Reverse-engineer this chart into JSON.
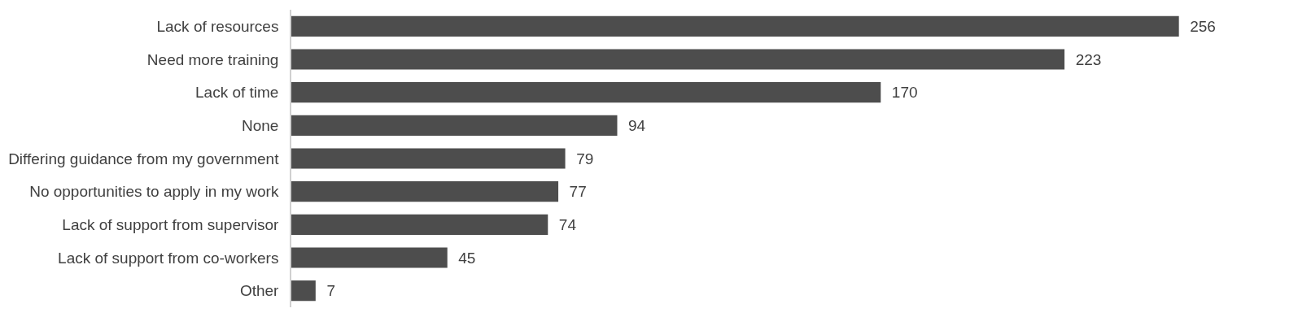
{
  "chart_data": {
    "type": "bar",
    "orientation": "horizontal",
    "categories": [
      "Lack of resources",
      "Need more training",
      "Lack of time",
      "None",
      "Differing guidance from my government",
      "No opportunities to apply in my work",
      "Lack of support from supervisor",
      "Lack of support from co-workers",
      "Other"
    ],
    "values": [
      256,
      223,
      170,
      94,
      79,
      77,
      74,
      45,
      7
    ],
    "color": "#4d4d4d",
    "data_labels": true
  }
}
